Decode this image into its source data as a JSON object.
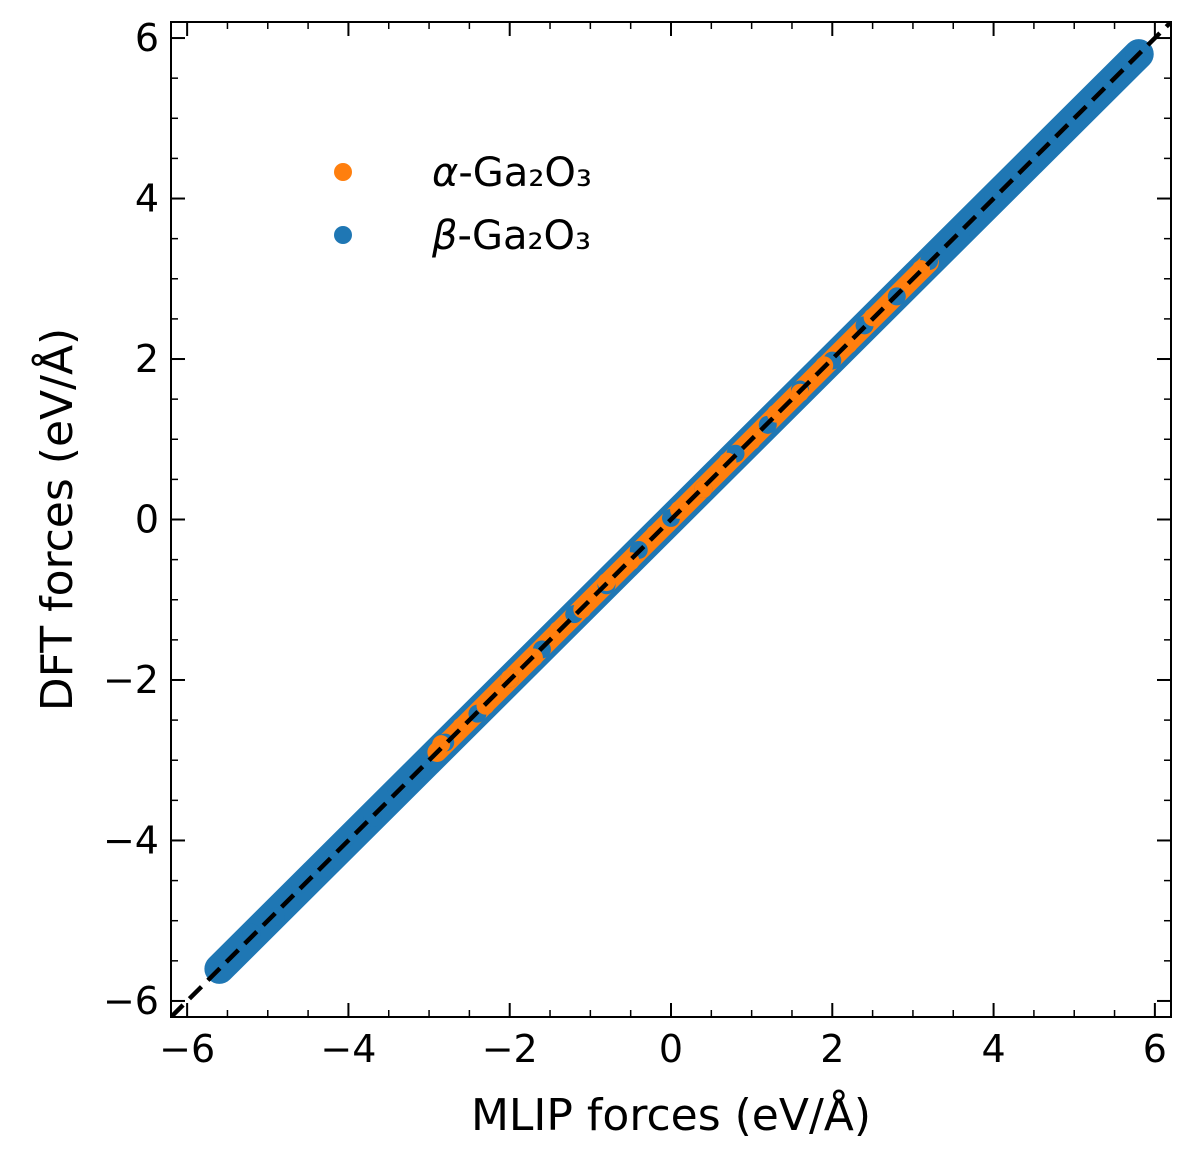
{
  "chart_data": {
    "type": "scatter",
    "title": "",
    "xlabel": "MLIP forces (eV/Å)",
    "ylabel": "DFT forces (eV/Å)",
    "xlim": [
      -6.2,
      6.2
    ],
    "ylim": [
      -6.2,
      6.2
    ],
    "xticks": [
      -6,
      -4,
      -2,
      0,
      2,
      4,
      6
    ],
    "yticks": [
      -6,
      -4,
      -2,
      0,
      2,
      4,
      6
    ],
    "xtick_labels": [
      "−6",
      "−4",
      "−2",
      "0",
      "2",
      "4",
      "6"
    ],
    "ytick_labels": [
      "−6",
      "−4",
      "−2",
      "0",
      "2",
      "4",
      "6"
    ],
    "grid": false,
    "legend_position": "upper-left",
    "series": [
      {
        "name": "α-Ga₂O₃",
        "legend_symbol": "α",
        "legend_text": "-Ga₂O₃",
        "color": "#ff7f0e",
        "x_range": [
          -2.9,
          3.2
        ],
        "points_x": [
          -2.85,
          -2.6,
          -2.3,
          -2.0,
          -1.7,
          -1.4,
          -1.1,
          -0.8,
          -0.5,
          -0.2,
          0.1,
          0.4,
          0.7,
          1.0,
          1.3,
          1.6,
          1.9,
          2.2,
          2.5,
          3.1
        ],
        "points_y": [
          -2.8,
          -2.58,
          -2.32,
          -1.98,
          -1.72,
          -1.38,
          -1.12,
          -0.78,
          -0.52,
          -0.18,
          0.12,
          0.38,
          0.72,
          0.98,
          1.32,
          1.58,
          1.92,
          2.18,
          2.52,
          3.12
        ]
      },
      {
        "name": "β-Ga₂O₃",
        "legend_symbol": "β",
        "legend_text": "-Ga₂O₃",
        "color": "#1f77b4",
        "x_range": [
          -5.6,
          5.8
        ],
        "points_x": [
          -5.55,
          -5.2,
          -4.9,
          -4.6,
          -4.3,
          -4.0,
          -3.7,
          -3.4,
          -3.1,
          -2.8,
          -2.4,
          -2.0,
          -1.6,
          -1.2,
          -0.8,
          -0.4,
          0.0,
          0.4,
          0.8,
          1.2,
          1.6,
          2.0,
          2.4,
          2.8,
          3.2,
          3.6,
          4.0,
          4.4,
          4.8,
          5.1,
          5.4,
          5.75
        ],
        "points_y": [
          -5.5,
          -5.15,
          -4.95,
          -4.55,
          -4.35,
          -3.95,
          -3.72,
          -3.38,
          -3.12,
          -2.78,
          -2.42,
          -1.98,
          -1.62,
          -1.18,
          -0.82,
          -0.38,
          0.02,
          0.38,
          0.82,
          1.18,
          1.62,
          1.98,
          2.42,
          2.78,
          3.22,
          3.58,
          4.02,
          4.38,
          4.82,
          5.08,
          5.42,
          5.78
        ]
      }
    ],
    "reference_line": {
      "label": "y = x",
      "style": "dashed",
      "color": "#000000",
      "from": [
        -6.2,
        -6.2
      ],
      "to": [
        6.2,
        6.2
      ]
    }
  }
}
